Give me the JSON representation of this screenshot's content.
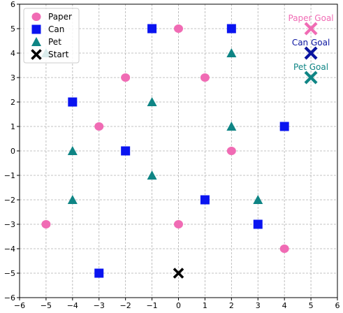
{
  "chart_data": {
    "type": "scatter",
    "title": "",
    "xlabel": "",
    "ylabel": "",
    "xlim": [
      -6,
      6
    ],
    "ylim": [
      -6,
      6
    ],
    "xticks": [
      -6,
      -5,
      -4,
      -3,
      -2,
      -1,
      0,
      1,
      2,
      3,
      4,
      5,
      6
    ],
    "yticks": [
      -6,
      -5,
      -4,
      -3,
      -2,
      -1,
      0,
      1,
      2,
      3,
      4,
      5,
      6
    ],
    "grid": true,
    "legend_position": "top-left",
    "series": [
      {
        "name": "Paper",
        "marker": "circle",
        "color": "#f06bb4",
        "points": [
          [
            0,
            5
          ],
          [
            -2,
            3
          ],
          [
            1,
            3
          ],
          [
            -3,
            1
          ],
          [
            2,
            0
          ],
          [
            -5,
            -3
          ],
          [
            0,
            -3
          ],
          [
            4,
            -4
          ]
        ]
      },
      {
        "name": "Can",
        "marker": "square",
        "color": "#0a14f0",
        "points": [
          [
            -1,
            5
          ],
          [
            2,
            5
          ],
          [
            -4,
            2
          ],
          [
            4,
            1
          ],
          [
            -2,
            0
          ],
          [
            1,
            -2
          ],
          [
            3,
            -3
          ],
          [
            -3,
            -5
          ]
        ]
      },
      {
        "name": "Pet",
        "marker": "triangle",
        "color": "#0f8585",
        "points": [
          [
            -5,
            4
          ],
          [
            2,
            4
          ],
          [
            -1,
            2
          ],
          [
            2,
            1
          ],
          [
            -4,
            0
          ],
          [
            -1,
            -1
          ],
          [
            -4,
            -2
          ],
          [
            3,
            -2
          ]
        ]
      },
      {
        "name": "Start",
        "marker": "x",
        "color": "#000000",
        "points": [
          [
            0,
            -5
          ]
        ]
      }
    ],
    "goals": [
      {
        "label": "Paper Goal",
        "x": 5,
        "y": 5,
        "color": "#f06bb4"
      },
      {
        "label": "Can Goal",
        "x": 5,
        "y": 4,
        "color": "#0a14a0"
      },
      {
        "label": "Pet Goal",
        "x": 5,
        "y": 3,
        "color": "#0f8585"
      }
    ]
  }
}
